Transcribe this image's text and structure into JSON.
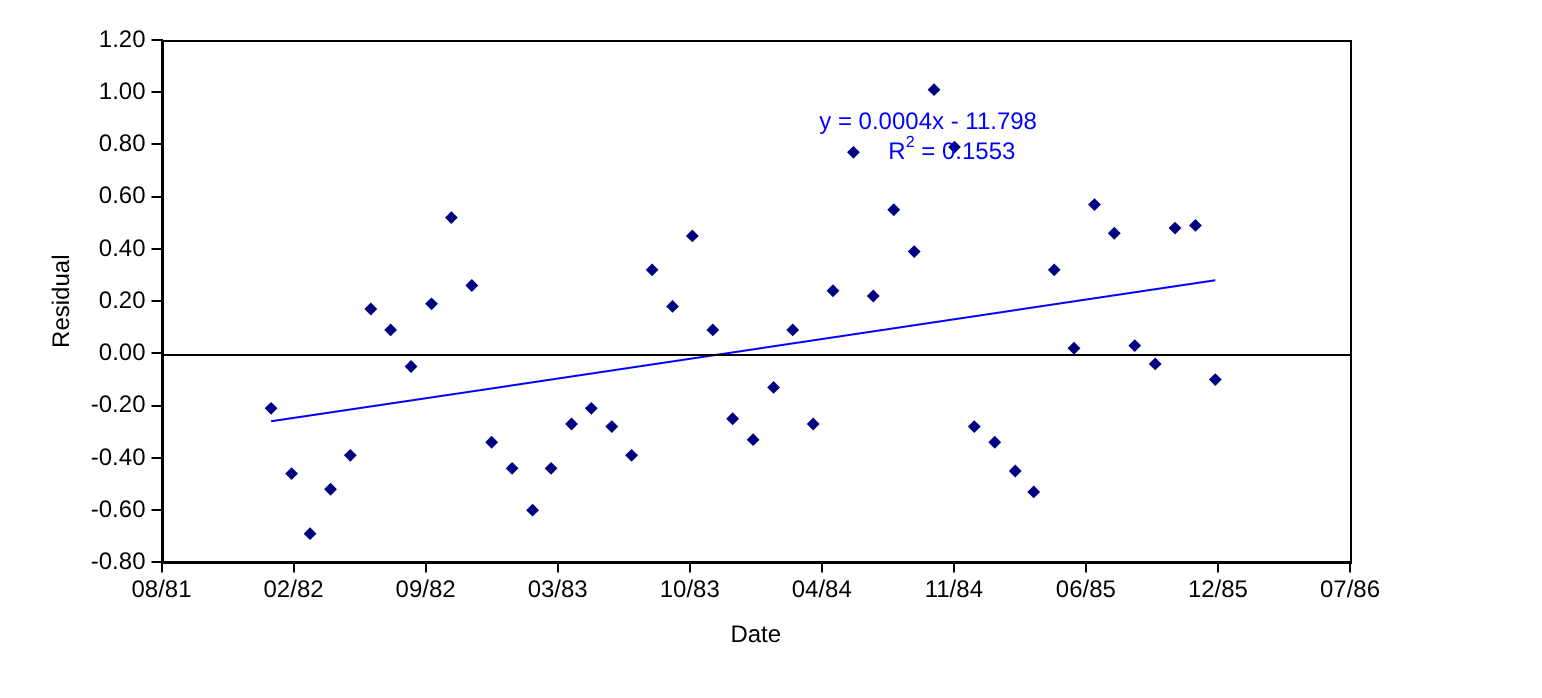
{
  "chart_data": {
    "type": "scatter",
    "xlabel": "Date",
    "ylabel": "Residual",
    "xlim": [
      "1981-08-02",
      "1986-07-07"
    ],
    "xticks": [
      {
        "value": "1981-08-02",
        "label": "08/81"
      },
      {
        "value": "1982-02-18",
        "label": "02/82"
      },
      {
        "value": "1982-09-06",
        "label": "09/82"
      },
      {
        "value": "1983-03-25",
        "label": "03/83"
      },
      {
        "value": "1983-10-11",
        "label": "10/83"
      },
      {
        "value": "1984-04-28",
        "label": "04/84"
      },
      {
        "value": "1984-11-14",
        "label": "11/84"
      },
      {
        "value": "1985-06-02",
        "label": "06/85"
      },
      {
        "value": "1985-12-19",
        "label": "12/85"
      },
      {
        "value": "1986-07-07",
        "label": "07/86"
      }
    ],
    "ylim": [
      -0.8,
      1.2
    ],
    "yticks": [
      {
        "value": -0.8,
        "label": "-0.80"
      },
      {
        "value": -0.6,
        "label": "-0.60"
      },
      {
        "value": -0.4,
        "label": "-0.40"
      },
      {
        "value": -0.2,
        "label": "-0.20"
      },
      {
        "value": 0,
        "label": "0.00"
      },
      {
        "value": 0.2,
        "label": "0.20"
      },
      {
        "value": 0.4,
        "label": "0.40"
      },
      {
        "value": 0.6,
        "label": "0.60"
      },
      {
        "value": 0.8,
        "label": "0.80"
      },
      {
        "value": 1,
        "label": "1.00"
      },
      {
        "value": 1.2,
        "label": "1.20"
      }
    ],
    "grid": false,
    "legend": false,
    "marker": "diamond",
    "ref_lines": [
      {
        "axis": "y",
        "value": 0
      }
    ],
    "series": [
      {
        "color": "#000080",
        "x": [
          "1982-01-15",
          "1982-02-15",
          "1982-03-15",
          "1982-04-15",
          "1982-05-15",
          "1982-06-15",
          "1982-07-15",
          "1982-08-15",
          "1982-09-15",
          "1982-10-15",
          "1982-11-15",
          "1982-12-15",
          "1983-01-15",
          "1983-02-15",
          "1983-03-15",
          "1983-04-15",
          "1983-05-15",
          "1983-06-15",
          "1983-07-15",
          "1983-08-15",
          "1983-09-15",
          "1983-10-15",
          "1983-11-15",
          "1983-12-15",
          "1984-01-15",
          "1984-02-15",
          "1984-03-15",
          "1984-04-15",
          "1984-05-15",
          "1984-06-15",
          "1984-07-15",
          "1984-08-15",
          "1984-09-15",
          "1984-10-15",
          "1984-11-15",
          "1984-12-15",
          "1985-01-15",
          "1985-02-15",
          "1985-03-15",
          "1985-04-15",
          "1985-05-15",
          "1985-06-15",
          "1985-07-15",
          "1985-08-15",
          "1985-09-15",
          "1985-10-15",
          "1985-11-15",
          "1985-12-15"
        ],
        "values": [
          -0.21,
          -0.46,
          -0.69,
          -0.52,
          -0.39,
          0.17,
          0.09,
          -0.05,
          0.19,
          0.52,
          0.26,
          -0.34,
          -0.44,
          -0.6,
          -0.44,
          -0.27,
          -0.21,
          -0.28,
          -0.39,
          0.32,
          0.18,
          0.45,
          0.09,
          -0.25,
          -0.33,
          -0.13,
          0.09,
          -0.27,
          0.24,
          0.77,
          0.22,
          0.55,
          0.39,
          1.01,
          0.79,
          -0.28,
          -0.34,
          -0.45,
          -0.53,
          0.32,
          0.02,
          0.57,
          0.46,
          0.03,
          -0.04,
          0.48,
          0.49,
          -0.1
        ]
      },
      {
        "type": "line",
        "color": "#0000ff",
        "marker": "none",
        "x": [
          "1982-01-15",
          "1985-12-15"
        ],
        "values": [
          -0.26,
          0.28
        ]
      }
    ],
    "annotations": [
      "y = 0.0004x - 11.798",
      "R$^{2}$ = 0.1553"
    ]
  }
}
